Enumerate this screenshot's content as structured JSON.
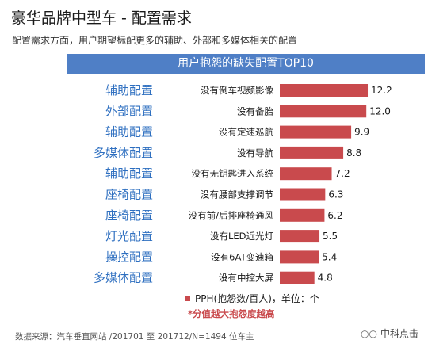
{
  "title": "豪华品牌中型车 - 配置需求",
  "subtitle": "配置需求方面，用户期望标配更多的辅助、外部和多媒体相关的配置",
  "banner": "用户抱怨的缺失配置TOP10",
  "legend_label": "PPH(抱怨数/百人)，单位：个",
  "note": "*分值越大抱怨度越高",
  "source": "数据来源：汽车垂直网站 /201701 至 201712/N=1494 位车主",
  "logo_text": "中科点击",
  "bar_color": "#c94a4d",
  "category_color": "#2e6fc0",
  "banner_color": "#4f7fc6",
  "chart_data": {
    "type": "bar",
    "orientation": "horizontal",
    "groups": [
      "辅助配置",
      "外部配置",
      "辅助配置",
      "多媒体配置",
      "辅助配置",
      "座椅配置",
      "座椅配置",
      "灯光配置",
      "操控配置",
      "多媒体配置"
    ],
    "categories": [
      "没有倒车视频影像",
      "没有备胎",
      "没有定速巡航",
      "没有导航",
      "没有无钥匙进入系统",
      "没有腰部支撑调节",
      "没有前/后排座椅通风",
      "没有LED近光灯",
      "没有6AT变速箱",
      "没有中控大屏"
    ],
    "values": [
      12.2,
      12.0,
      9.9,
      8.8,
      7.2,
      6.3,
      6.2,
      5.5,
      5.4,
      4.8
    ],
    "value_labels": [
      "12.2",
      "12.0",
      "9.9",
      "8.8",
      "7.2",
      "6.3",
      "6.2",
      "5.5",
      "5.4",
      "4.8"
    ],
    "series": [
      {
        "name": "PPH(抱怨数/百人)，单位：个",
        "values": [
          12.2,
          12.0,
          9.9,
          8.8,
          7.2,
          6.3,
          6.2,
          5.5,
          5.4,
          4.8
        ]
      }
    ],
    "grid": false,
    "legend": "bottom"
  }
}
